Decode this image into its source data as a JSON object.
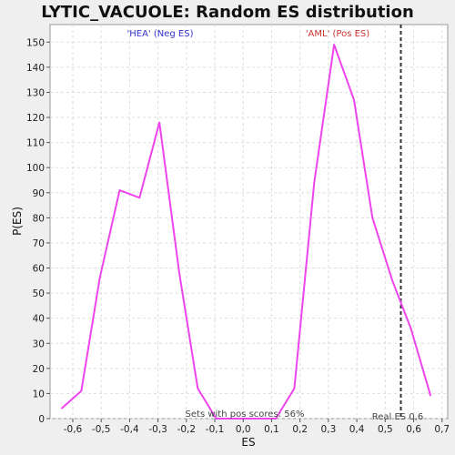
{
  "chart_data": {
    "type": "line",
    "title": "LYTIC_VACUOLE: Random ES distribution",
    "xlabel": "ES",
    "ylabel": "P(ES)",
    "xlim": [
      -0.68,
      0.72
    ],
    "ylim": [
      0,
      157
    ],
    "xticks": [
      -0.6,
      -0.5,
      -0.4,
      -0.3,
      -0.2,
      -0.1,
      0.0,
      0.1,
      0.2,
      0.3,
      0.4,
      0.5,
      0.6,
      0.7
    ],
    "xtick_labels": [
      "-0,6",
      "-0,5",
      "-0,4",
      "-0,3",
      "-0,2",
      "-0,1",
      "0,0",
      "0,1",
      "0,2",
      "0,3",
      "0,4",
      "0,5",
      "0,6",
      "0,7"
    ],
    "yticks": [
      0,
      10,
      20,
      30,
      40,
      50,
      60,
      70,
      80,
      90,
      100,
      110,
      120,
      130,
      140,
      150
    ],
    "ytick_labels": [
      "0",
      "10",
      "20",
      "30",
      "40",
      "50",
      "60",
      "70",
      "80",
      "90",
      "100",
      "110",
      "120",
      "130",
      "140",
      "150"
    ],
    "grid": true,
    "series": [
      {
        "color": "#ee44ee",
        "x": [
          -0.64,
          -0.57,
          -0.505,
          -0.435,
          -0.365,
          -0.295,
          -0.225,
          -0.16,
          -0.095,
          -0.035,
          0.04,
          0.115,
          0.18,
          0.25,
          0.32,
          0.39,
          0.455,
          0.525,
          0.59,
          0.66
        ],
        "y": [
          4,
          11,
          56,
          91,
          88,
          118,
          58,
          12,
          0,
          0,
          0,
          0,
          12,
          94,
          149,
          127,
          80,
          55,
          36,
          9
        ]
      }
    ],
    "reference_line": {
      "x": 0.555,
      "color": "#333333"
    },
    "annotations": {
      "neg_label": "'HEA' (Neg ES)",
      "pos_label": "'AML' (Pos ES)",
      "sets_label": "Sets with pos scores: 56%",
      "real_es_label": "Real ES 0,6"
    },
    "colors": {
      "neg": "#3333cc",
      "pos": "#cc3333",
      "plot_bg": "#ffffff",
      "page_bg": "#efefef"
    }
  }
}
